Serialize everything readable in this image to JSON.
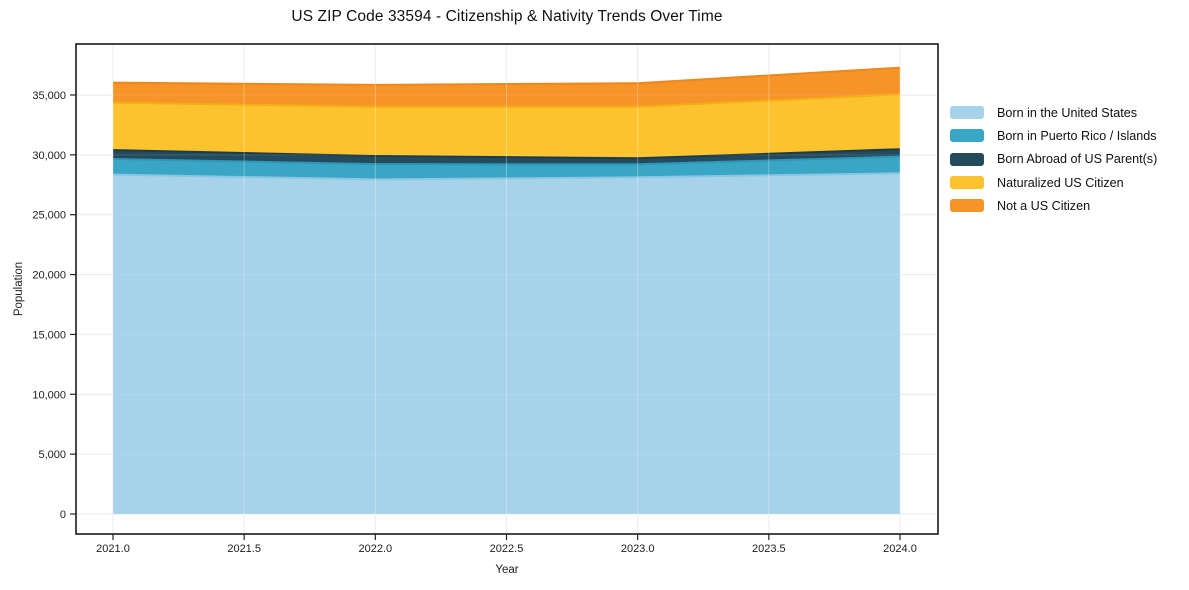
{
  "title": "US ZIP Code 33594 - Citizenship & Nativity Trends Over Time",
  "chart_data": {
    "type": "area",
    "stacked": true,
    "title": "US ZIP Code 33594 - Citizenship & Nativity Trends Over Time",
    "xlabel": "Year",
    "ylabel": "Population",
    "x": [
      2021,
      2022,
      2023,
      2024
    ],
    "x_tick_values": [
      2021.0,
      2021.5,
      2022.0,
      2022.5,
      2023.0,
      2023.5,
      2024.0
    ],
    "x_tick_labels": [
      "2021.0",
      "2021.5",
      "2022.0",
      "2022.5",
      "2023.0",
      "2023.5",
      "2024.0"
    ],
    "y_tick_values": [
      0,
      5000,
      10000,
      15000,
      20000,
      25000,
      30000,
      35000
    ],
    "y_tick_labels": [
      "0",
      "5,000",
      "10,000",
      "15,000",
      "20,000",
      "25,000",
      "30,000",
      "35,000"
    ],
    "xlim": [
      2020.86,
      2024.14
    ],
    "ylim": [
      -1670,
      39260
    ],
    "grid": true,
    "legend_position": "right",
    "series": [
      {
        "name": "Born in the United States",
        "color": "#a6d3ea",
        "edge": "#8cc5e2",
        "values": [
          28350,
          27950,
          28120,
          28460
        ]
      },
      {
        "name": "Born in Puerto Rico / Islands",
        "color": "#3aa6c5",
        "edge": "#2d97b8",
        "values": [
          1300,
          1280,
          1090,
          1390
        ]
      },
      {
        "name": "Born Abroad of US Parent(s)",
        "color": "#244b5d",
        "edge": "#1b3c4b",
        "values": [
          750,
          670,
          500,
          620
        ]
      },
      {
        "name": "Naturalized US Citizen",
        "color": "#fdc32e",
        "edge": "#f2ae14",
        "values": [
          3960,
          4120,
          4310,
          4590
        ]
      },
      {
        "name": "Not a US Citizen",
        "color": "#f79428",
        "edge": "#ed861d",
        "values": [
          1670,
          1820,
          1960,
          2220
        ]
      }
    ],
    "totals": [
      36030,
      35840,
      35980,
      37280
    ]
  }
}
